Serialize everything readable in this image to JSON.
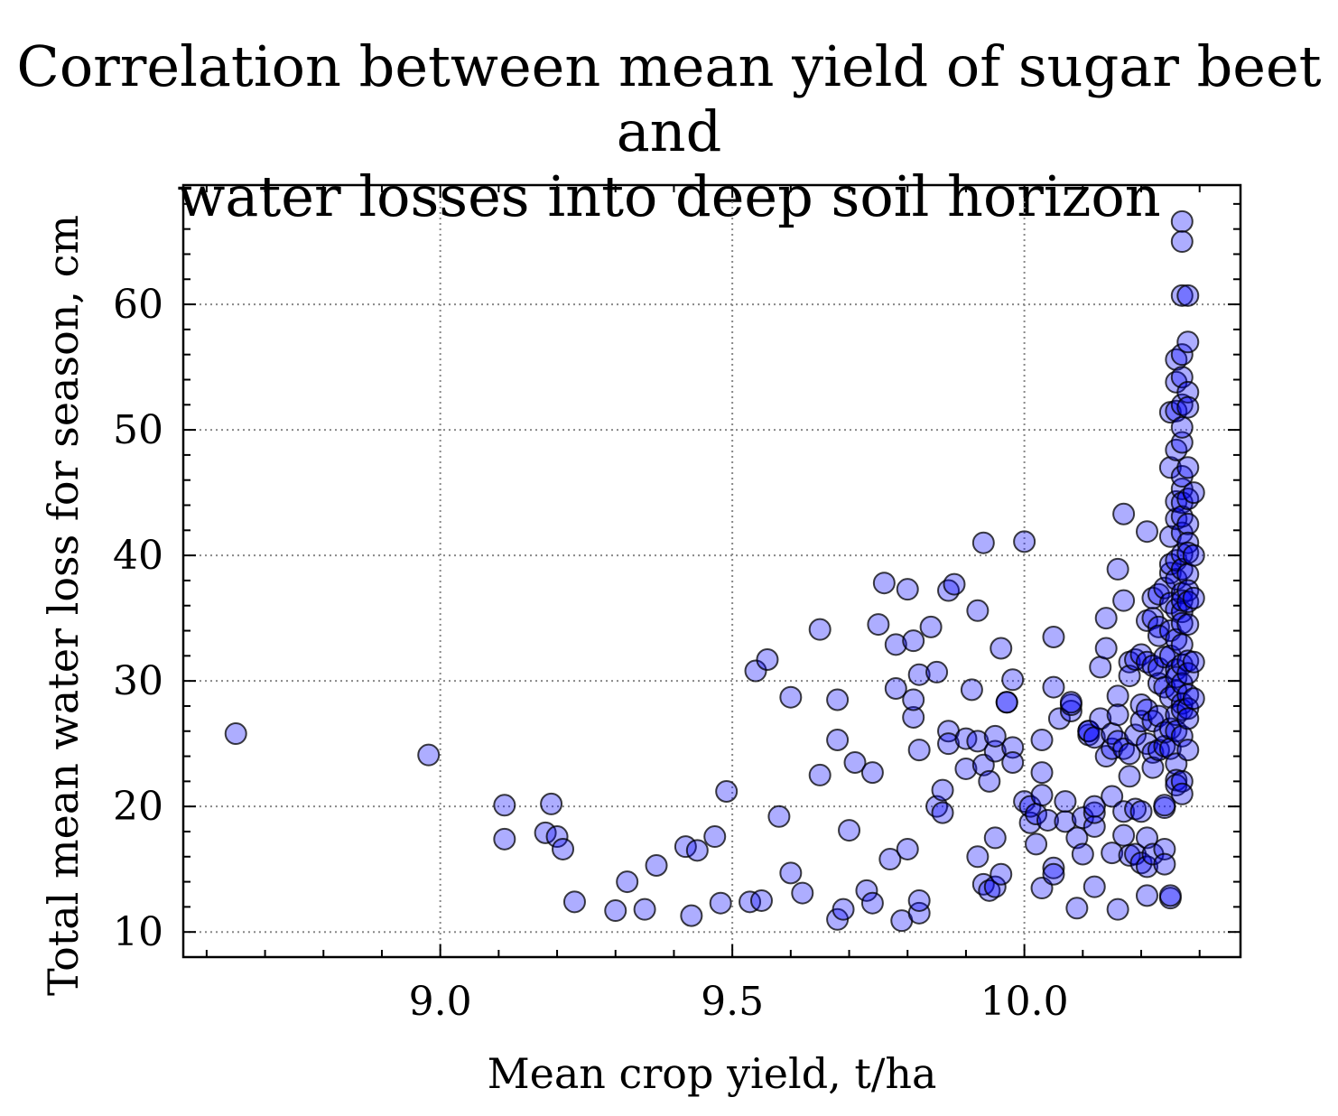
{
  "chart_data": {
    "type": "scatter",
    "title_line1": "Correlation between mean yield of sugar beet and",
    "title_line2": "water losses into deep soil horizon",
    "xlabel": "Mean crop yield, t/ha",
    "ylabel": "Total mean water loss for season, cm",
    "xlim": [
      8.56,
      10.37
    ],
    "ylim": [
      8.0,
      69.5
    ],
    "x_ticks": [
      9.0,
      9.5,
      10.0
    ],
    "x_tick_labels": [
      "9.0",
      "9.5",
      "10.0"
    ],
    "y_ticks": [
      10,
      20,
      30,
      40,
      50,
      60
    ],
    "y_tick_labels": [
      "10",
      "20",
      "30",
      "40",
      "50",
      "60"
    ],
    "grid": true,
    "marker_color": "#0000ff",
    "marker_edge_color": "#000000",
    "points": [
      [
        8.65,
        25.8
      ],
      [
        8.98,
        24.1
      ],
      [
        9.11,
        20.1
      ],
      [
        9.11,
        17.4
      ],
      [
        9.19,
        20.2
      ],
      [
        9.18,
        17.9
      ],
      [
        9.2,
        17.6
      ],
      [
        9.21,
        16.6
      ],
      [
        9.23,
        12.4
      ],
      [
        9.3,
        11.7
      ],
      [
        9.32,
        14.0
      ],
      [
        9.35,
        11.8
      ],
      [
        9.37,
        15.3
      ],
      [
        9.42,
        16.8
      ],
      [
        9.43,
        11.3
      ],
      [
        9.44,
        16.5
      ],
      [
        9.47,
        17.6
      ],
      [
        9.48,
        12.3
      ],
      [
        9.49,
        21.2
      ],
      [
        9.53,
        12.4
      ],
      [
        9.55,
        12.5
      ],
      [
        9.54,
        30.8
      ],
      [
        9.56,
        31.7
      ],
      [
        9.58,
        19.2
      ],
      [
        9.6,
        14.7
      ],
      [
        9.6,
        28.7
      ],
      [
        9.62,
        13.1
      ],
      [
        9.65,
        22.5
      ],
      [
        9.65,
        34.1
      ],
      [
        9.68,
        28.5
      ],
      [
        9.68,
        25.3
      ],
      [
        9.68,
        11.0
      ],
      [
        9.69,
        11.8
      ],
      [
        9.7,
        18.1
      ],
      [
        9.71,
        23.5
      ],
      [
        9.73,
        13.3
      ],
      [
        9.74,
        12.3
      ],
      [
        9.74,
        22.7
      ],
      [
        9.75,
        34.5
      ],
      [
        9.76,
        37.8
      ],
      [
        9.77,
        15.8
      ],
      [
        9.78,
        32.9
      ],
      [
        9.78,
        29.4
      ],
      [
        9.79,
        10.9
      ],
      [
        9.8,
        37.3
      ],
      [
        9.8,
        16.6
      ],
      [
        9.81,
        27.1
      ],
      [
        9.81,
        28.5
      ],
      [
        9.81,
        33.2
      ],
      [
        9.82,
        30.5
      ],
      [
        9.82,
        24.5
      ],
      [
        9.82,
        11.5
      ],
      [
        9.82,
        12.5
      ],
      [
        9.84,
        34.3
      ],
      [
        9.85,
        30.7
      ],
      [
        9.85,
        20.0
      ],
      [
        9.86,
        19.5
      ],
      [
        9.86,
        21.3
      ],
      [
        9.87,
        26.0
      ],
      [
        9.87,
        25.0
      ],
      [
        9.87,
        37.2
      ],
      [
        9.88,
        37.7
      ],
      [
        9.9,
        25.4
      ],
      [
        9.9,
        23.0
      ],
      [
        9.91,
        29.3
      ],
      [
        9.92,
        25.2
      ],
      [
        9.92,
        35.6
      ],
      [
        9.92,
        16.0
      ],
      [
        9.93,
        13.8
      ],
      [
        9.93,
        41.0
      ],
      [
        9.93,
        23.3
      ],
      [
        9.94,
        13.3
      ],
      [
        9.94,
        22.0
      ],
      [
        9.95,
        24.4
      ],
      [
        9.95,
        25.6
      ],
      [
        9.95,
        17.5
      ],
      [
        9.95,
        13.6
      ],
      [
        9.96,
        32.6
      ],
      [
        9.96,
        14.6
      ],
      [
        9.97,
        28.3
      ],
      [
        9.97,
        28.3
      ],
      [
        9.98,
        24.7
      ],
      [
        9.98,
        23.5
      ],
      [
        9.98,
        30.1
      ],
      [
        10.0,
        20.4
      ],
      [
        10.0,
        41.1
      ],
      [
        10.01,
        18.7
      ],
      [
        10.01,
        20.0
      ],
      [
        10.02,
        19.4
      ],
      [
        10.02,
        17.0
      ],
      [
        10.03,
        13.5
      ],
      [
        10.03,
        20.9
      ],
      [
        10.03,
        22.7
      ],
      [
        10.03,
        25.3
      ],
      [
        10.04,
        18.9
      ],
      [
        10.05,
        15.1
      ],
      [
        10.05,
        14.6
      ],
      [
        10.05,
        29.5
      ],
      [
        10.05,
        33.5
      ],
      [
        10.06,
        27.0
      ],
      [
        10.07,
        20.4
      ],
      [
        10.07,
        18.8
      ],
      [
        10.08,
        27.6
      ],
      [
        10.08,
        28.1
      ],
      [
        10.08,
        28.3
      ],
      [
        10.09,
        11.9
      ],
      [
        10.09,
        17.5
      ],
      [
        10.1,
        16.2
      ],
      [
        10.1,
        19.1
      ],
      [
        10.11,
        25.7
      ],
      [
        10.11,
        26.0
      ],
      [
        10.11,
        26.0
      ],
      [
        10.12,
        13.6
      ],
      [
        10.12,
        18.4
      ],
      [
        10.12,
        19.5
      ],
      [
        10.12,
        20.0
      ],
      [
        10.12,
        25.5
      ],
      [
        10.13,
        31.1
      ],
      [
        10.13,
        27.0
      ],
      [
        10.14,
        35.0
      ],
      [
        10.14,
        32.6
      ],
      [
        10.14,
        24.0
      ],
      [
        10.15,
        16.3
      ],
      [
        10.15,
        20.8
      ],
      [
        10.15,
        24.6
      ],
      [
        10.15,
        25.8
      ],
      [
        10.16,
        38.9
      ],
      [
        10.16,
        28.8
      ],
      [
        10.16,
        27.3
      ],
      [
        10.16,
        25.2
      ],
      [
        10.16,
        11.8
      ],
      [
        10.17,
        19.6
      ],
      [
        10.17,
        17.7
      ],
      [
        10.17,
        24.6
      ],
      [
        10.17,
        36.4
      ],
      [
        10.17,
        43.3
      ],
      [
        10.18,
        16.1
      ],
      [
        10.18,
        22.4
      ],
      [
        10.18,
        31.5
      ],
      [
        10.18,
        30.4
      ],
      [
        10.18,
        24.2
      ],
      [
        10.19,
        16.2
      ],
      [
        10.19,
        19.8
      ],
      [
        10.19,
        25.7
      ],
      [
        10.19,
        31.7
      ],
      [
        10.2,
        32.1
      ],
      [
        10.2,
        28.1
      ],
      [
        10.2,
        26.8
      ],
      [
        10.2,
        15.5
      ],
      [
        10.2,
        19.6
      ],
      [
        10.21,
        12.9
      ],
      [
        10.21,
        17.5
      ],
      [
        10.21,
        15.2
      ],
      [
        10.21,
        27.7
      ],
      [
        10.21,
        34.8
      ],
      [
        10.21,
        41.9
      ],
      [
        10.21,
        25.0
      ],
      [
        10.21,
        31.5
      ],
      [
        10.22,
        31.2
      ],
      [
        10.22,
        24.3
      ],
      [
        10.22,
        23.1
      ],
      [
        10.22,
        26.8
      ],
      [
        10.22,
        16.2
      ],
      [
        10.22,
        35.0
      ],
      [
        10.22,
        36.6
      ],
      [
        10.23,
        34.3
      ],
      [
        10.23,
        24.5
      ],
      [
        10.23,
        27.2
      ],
      [
        10.23,
        29.8
      ],
      [
        10.23,
        31.0
      ],
      [
        10.23,
        36.9
      ],
      [
        10.23,
        33.6
      ],
      [
        10.24,
        16.6
      ],
      [
        10.24,
        15.4
      ],
      [
        10.24,
        24.8
      ],
      [
        10.24,
        25.9
      ],
      [
        10.24,
        29.5
      ],
      [
        10.24,
        31.9
      ],
      [
        10.24,
        37.4
      ],
      [
        10.24,
        19.9
      ],
      [
        10.24,
        20.1
      ],
      [
        10.25,
        24.6
      ],
      [
        10.25,
        26.2
      ],
      [
        10.25,
        28.7
      ],
      [
        10.25,
        32.0
      ],
      [
        10.25,
        34.0
      ],
      [
        10.25,
        36.2
      ],
      [
        10.25,
        38.6
      ],
      [
        10.25,
        39.3
      ],
      [
        10.25,
        41.5
      ],
      [
        10.25,
        47.0
      ],
      [
        10.25,
        51.4
      ],
      [
        10.25,
        12.7
      ],
      [
        10.25,
        12.9
      ],
      [
        10.26,
        27.3
      ],
      [
        10.26,
        30.9
      ],
      [
        10.26,
        33.3
      ],
      [
        10.26,
        38.1
      ],
      [
        10.26,
        23.4
      ],
      [
        10.26,
        22.1
      ],
      [
        10.26,
        21.7
      ],
      [
        10.26,
        26.0
      ],
      [
        10.26,
        29.2
      ],
      [
        10.26,
        30.3
      ],
      [
        10.26,
        35.7
      ],
      [
        10.26,
        39.6
      ],
      [
        10.26,
        42.9
      ],
      [
        10.26,
        44.3
      ],
      [
        10.26,
        48.4
      ],
      [
        10.26,
        53.8
      ],
      [
        10.26,
        55.6
      ],
      [
        10.26,
        51.5
      ],
      [
        10.27,
        49.0
      ],
      [
        10.27,
        45.3
      ],
      [
        10.27,
        44.2
      ],
      [
        10.27,
        41.8
      ],
      [
        10.27,
        40.1
      ],
      [
        10.27,
        37.0
      ],
      [
        10.27,
        35.5
      ],
      [
        10.27,
        32.9
      ],
      [
        10.27,
        31.3
      ],
      [
        10.27,
        29.8
      ],
      [
        10.27,
        28.2
      ],
      [
        10.27,
        27.7
      ],
      [
        10.27,
        25.6
      ],
      [
        10.27,
        22.0
      ],
      [
        10.27,
        21.0
      ],
      [
        10.27,
        34.6
      ],
      [
        10.27,
        36.4
      ],
      [
        10.27,
        38.9
      ],
      [
        10.27,
        43.1
      ],
      [
        10.27,
        46.3
      ],
      [
        10.27,
        50.2
      ],
      [
        10.27,
        52.0
      ],
      [
        10.27,
        54.2
      ],
      [
        10.27,
        56.0
      ],
      [
        10.27,
        60.7
      ],
      [
        10.27,
        66.6
      ],
      [
        10.27,
        65.0
      ],
      [
        10.28,
        60.7
      ],
      [
        10.28,
        57.0
      ],
      [
        10.28,
        53.0
      ],
      [
        10.28,
        51.8
      ],
      [
        10.28,
        47.0
      ],
      [
        10.28,
        44.5
      ],
      [
        10.28,
        42.5
      ],
      [
        10.28,
        41.0
      ],
      [
        10.28,
        40.2
      ],
      [
        10.28,
        38.5
      ],
      [
        10.28,
        37.2
      ],
      [
        10.28,
        36.3
      ],
      [
        10.28,
        34.5
      ],
      [
        10.28,
        31.6
      ],
      [
        10.28,
        30.6
      ],
      [
        10.28,
        28.9
      ],
      [
        10.28,
        27.8
      ],
      [
        10.28,
        27.0
      ],
      [
        10.28,
        24.5
      ],
      [
        10.29,
        31.5
      ],
      [
        10.29,
        36.6
      ],
      [
        10.29,
        40.0
      ],
      [
        10.29,
        45.0
      ],
      [
        10.29,
        28.6
      ]
    ]
  }
}
